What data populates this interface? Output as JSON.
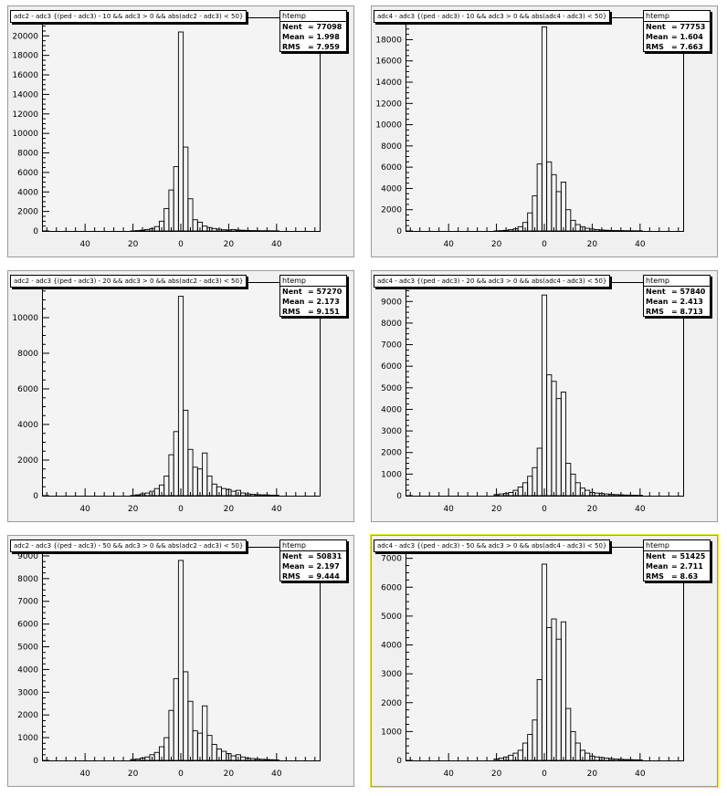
{
  "chart_data": [
    {
      "type": "histogram",
      "title": "adc2 - adc3 {(ped - adc3) - 10 && adc3 > 0 && abs(adc2 - adc3) < 50}",
      "stats": {
        "name": "htemp",
        "entries_label": "Nent",
        "entries": "77098",
        "mean_label": "Mean",
        "mean": "1.998",
        "rms_label": "RMS",
        "rms": "7.959"
      },
      "xlim": [
        -58,
        58
      ],
      "ylim": [
        0,
        21900
      ],
      "x_ticks": [
        -40,
        -20,
        0,
        20,
        40
      ],
      "x_tick_labels": [
        "40",
        "20",
        "0",
        "20",
        "40"
      ],
      "y_ticks": [
        0,
        2000,
        4000,
        6000,
        8000,
        10000,
        12000,
        14000,
        16000,
        18000,
        20000
      ],
      "x": [
        -20,
        -18,
        -16,
        -14,
        -12,
        -10,
        -8,
        -6,
        -4,
        -2,
        0,
        2,
        4,
        6,
        8,
        10,
        12,
        14,
        16,
        18,
        20,
        22,
        24,
        26,
        28,
        30,
        32,
        34,
        36,
        38,
        40
      ],
      "values": [
        5,
        40,
        80,
        150,
        250,
        450,
        1000,
        2300,
        4200,
        6600,
        20400,
        8600,
        3300,
        1150,
        900,
        500,
        350,
        250,
        180,
        120,
        100,
        150,
        90,
        70,
        50,
        40,
        30,
        25,
        20,
        15,
        10
      ]
    },
    {
      "type": "histogram",
      "title": "adc4 - adc3 {(ped - adc3) - 10 && adc3 > 0 && abs(adc4 - adc3) < 50}",
      "stats": {
        "name": "htemp",
        "entries_label": "Nent",
        "entries": "77753",
        "mean_label": "Mean",
        "mean": "1.604",
        "rms_label": "RMS",
        "rms": "7.663"
      },
      "xlim": [
        -58,
        58
      ],
      "ylim": [
        0,
        20100
      ],
      "x_ticks": [
        -40,
        -20,
        0,
        20,
        40
      ],
      "x_tick_labels": [
        "40",
        "20",
        "0",
        "20",
        "40"
      ],
      "y_ticks": [
        0,
        2000,
        4000,
        6000,
        8000,
        10000,
        12000,
        14000,
        16000,
        18000,
        20000
      ],
      "x": [
        -20,
        -18,
        -16,
        -14,
        -12,
        -10,
        -8,
        -6,
        -4,
        -2,
        0,
        2,
        4,
        6,
        8,
        10,
        12,
        14,
        16,
        18,
        20,
        22,
        24,
        26,
        28,
        30,
        32,
        34,
        36,
        38,
        40
      ],
      "values": [
        5,
        30,
        60,
        120,
        200,
        400,
        800,
        1700,
        3300,
        6300,
        19200,
        6500,
        5300,
        3700,
        4600,
        2000,
        1000,
        600,
        400,
        250,
        180,
        120,
        90,
        70,
        50,
        40,
        30,
        25,
        20,
        15,
        10
      ]
    },
    {
      "type": "histogram",
      "title": "adc2 - adc3 {(ped - adc3) - 20 && adc3 > 0 && abs(adc2 - adc3) < 50}",
      "stats": {
        "name": "htemp",
        "entries_label": "Nent",
        "entries": "57270",
        "mean_label": "Mean",
        "mean": "2.173",
        "rms_label": "RMS",
        "rms": "9.151"
      },
      "xlim": [
        -58,
        58
      ],
      "ylim": [
        0,
        12000
      ],
      "x_ticks": [
        -40,
        -20,
        0,
        20,
        40
      ],
      "x_tick_labels": [
        "40",
        "20",
        "0",
        "20",
        "40"
      ],
      "y_ticks": [
        0,
        2000,
        4000,
        6000,
        8000,
        10000
      ],
      "x": [
        -20,
        -18,
        -16,
        -14,
        -12,
        -10,
        -8,
        -6,
        -4,
        -2,
        0,
        2,
        4,
        6,
        8,
        10,
        12,
        14,
        16,
        18,
        20,
        22,
        24,
        26,
        28,
        30,
        32,
        34,
        36,
        38,
        40
      ],
      "values": [
        10,
        50,
        100,
        150,
        250,
        400,
        600,
        1100,
        2300,
        3600,
        11200,
        4800,
        2600,
        1600,
        1500,
        2400,
        1100,
        650,
        500,
        400,
        350,
        250,
        300,
        150,
        100,
        80,
        60,
        50,
        40,
        30,
        20
      ]
    },
    {
      "type": "histogram",
      "title": "adc4 - adc3 {(ped - adc3) - 20 && adc3 > 0 && abs(adc4 - adc3) < 50}",
      "stats": {
        "name": "htemp",
        "entries_label": "Nent",
        "entries": "57840",
        "mean_label": "Mean",
        "mean": "2.413",
        "rms_label": "RMS",
        "rms": "8.713"
      },
      "xlim": [
        -58,
        58
      ],
      "ylim": [
        0,
        9900
      ],
      "x_ticks": [
        -40,
        -20,
        0,
        20,
        40
      ],
      "x_tick_labels": [
        "40",
        "20",
        "0",
        "20",
        "40"
      ],
      "y_ticks": [
        0,
        1000,
        2000,
        3000,
        4000,
        5000,
        6000,
        7000,
        8000,
        9000
      ],
      "x": [
        -20,
        -18,
        -16,
        -14,
        -12,
        -10,
        -8,
        -6,
        -4,
        -2,
        0,
        2,
        4,
        6,
        8,
        10,
        12,
        14,
        16,
        18,
        20,
        22,
        24,
        26,
        28,
        30,
        32,
        34,
        36,
        38,
        40
      ],
      "values": [
        50,
        80,
        100,
        150,
        250,
        400,
        600,
        900,
        1300,
        2200,
        9300,
        5600,
        5300,
        4500,
        4800,
        1500,
        1000,
        600,
        350,
        250,
        150,
        120,
        100,
        80,
        60,
        50,
        40,
        30,
        25,
        20,
        15
      ]
    },
    {
      "type": "histogram",
      "title": "adc2 - adc3 {(ped - adc3) - 50 && adc3 > 0 && abs(adc2 - adc3) < 50}",
      "stats": {
        "name": "htemp",
        "entries_label": "Nent",
        "entries": "50831",
        "mean_label": "Mean",
        "mean": "2.197",
        "rms_label": "RMS",
        "rms": "9.444"
      },
      "xlim": [
        -58,
        58
      ],
      "ylim": [
        0,
        9400
      ],
      "x_ticks": [
        -40,
        -20,
        0,
        20,
        40
      ],
      "x_tick_labels": [
        "40",
        "20",
        "0",
        "20",
        "40"
      ],
      "y_ticks": [
        0,
        1000,
        2000,
        3000,
        4000,
        5000,
        6000,
        7000,
        8000,
        9000
      ],
      "x": [
        -20,
        -18,
        -16,
        -14,
        -12,
        -10,
        -8,
        -6,
        -4,
        -2,
        0,
        2,
        4,
        6,
        8,
        10,
        12,
        14,
        16,
        18,
        20,
        22,
        24,
        26,
        28,
        30,
        32,
        34,
        36,
        38,
        40
      ],
      "values": [
        40,
        60,
        100,
        150,
        250,
        350,
        600,
        1000,
        2200,
        3600,
        8800,
        3900,
        2600,
        1300,
        1200,
        2400,
        1100,
        700,
        500,
        400,
        300,
        200,
        250,
        150,
        100,
        80,
        60,
        50,
        40,
        30,
        20
      ]
    },
    {
      "type": "histogram",
      "title": "adc4 - adc3 {(ped - adc3) - 50 && adc3 > 0 && abs(adc4 - adc3) < 50}",
      "stats": {
        "name": "htemp",
        "entries_label": "Nent",
        "entries": "51425",
        "mean_label": "Mean",
        "mean": "2.711",
        "rms_label": "RMS",
        "rms": "8.63"
      },
      "xlim": [
        -58,
        58
      ],
      "ylim": [
        0,
        7400
      ],
      "x_ticks": [
        -40,
        -20,
        0,
        20,
        40
      ],
      "x_tick_labels": [
        "40",
        "20",
        "0",
        "20",
        "40"
      ],
      "y_ticks": [
        0,
        1000,
        2000,
        3000,
        4000,
        5000,
        6000,
        7000
      ],
      "x": [
        -20,
        -18,
        -16,
        -14,
        -12,
        -10,
        -8,
        -6,
        -4,
        -2,
        0,
        2,
        4,
        6,
        8,
        10,
        12,
        14,
        16,
        18,
        20,
        22,
        24,
        26,
        28,
        30,
        32,
        34,
        36,
        38,
        40
      ],
      "values": [
        50,
        80,
        120,
        180,
        250,
        350,
        600,
        900,
        1400,
        2800,
        6800,
        4600,
        4900,
        4200,
        4800,
        1800,
        1000,
        600,
        350,
        250,
        150,
        120,
        100,
        80,
        60,
        50,
        40,
        30,
        25,
        20,
        15
      ]
    }
  ]
}
